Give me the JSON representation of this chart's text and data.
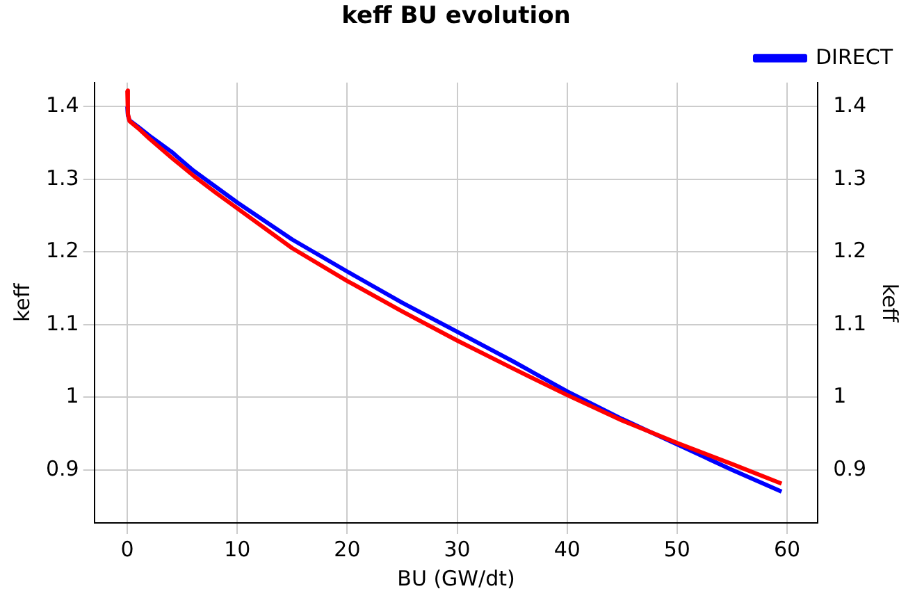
{
  "chart_data": {
    "type": "line",
    "title": "keff BU evolution",
    "xlabel": "BU (GW/dt)",
    "ylabel": "keff",
    "y2label": "keff",
    "xlim": [
      -3,
      62.8
    ],
    "xticks": [
      0,
      10,
      20,
      30,
      40,
      50,
      60
    ],
    "ylim": [
      0.827,
      1.433
    ],
    "yticks": [
      0.9,
      1.0,
      1.1,
      1.2,
      1.3,
      1.4
    ],
    "y2lim": [
      0.827,
      1.433
    ],
    "y2ticks": [
      0.9,
      1.0,
      1.1,
      1.2,
      1.3,
      1.4
    ],
    "grid": true,
    "legend": "top right",
    "marker": "none",
    "line_style": "solid",
    "series": [
      {
        "color": "#ff0000",
        "x": [
          0,
          0.05,
          0.2,
          1,
          2,
          4,
          6,
          8,
          10,
          15,
          20,
          25,
          30,
          35,
          40,
          45,
          50,
          55,
          59.5
        ],
        "values": [
          1.422,
          1.39,
          1.38,
          1.37,
          1.356,
          1.33,
          1.305,
          1.282,
          1.26,
          1.205,
          1.16,
          1.118,
          1.078,
          1.04,
          1.003,
          0.968,
          0.937,
          0.908,
          0.881
        ]
      },
      {
        "name": "DIRECT",
        "color": "#0000ff",
        "x": [
          0,
          0.05,
          0.2,
          1,
          2,
          4,
          6,
          8,
          10,
          15,
          20,
          25,
          30,
          35,
          40,
          45,
          50,
          55,
          59.5
        ],
        "values": [
          1.4,
          1.388,
          1.381,
          1.372,
          1.36,
          1.338,
          1.312,
          1.29,
          1.268,
          1.217,
          1.173,
          1.13,
          1.09,
          1.05,
          1.008,
          0.97,
          0.935,
          0.9,
          0.87
        ]
      }
    ]
  }
}
